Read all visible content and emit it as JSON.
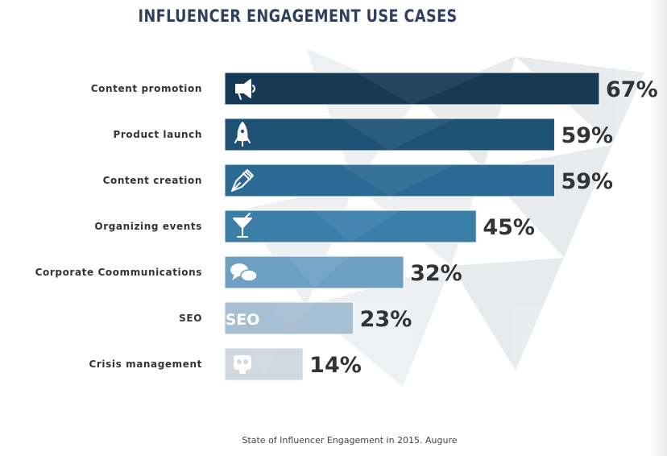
{
  "chart_data": {
    "type": "bar",
    "orientation": "horizontal",
    "title": "INFLUENCER ENGAGEMENT USE CASES",
    "categories": [
      "Content promotion",
      "Product launch",
      "Content creation",
      "Organizing events",
      "Corporate Coommunications",
      "SEO",
      "Crisis management"
    ],
    "values": [
      67,
      59,
      59,
      45,
      32,
      23,
      14
    ],
    "value_labels": [
      "67%",
      "59%",
      "59%",
      "45%",
      "32%",
      "23%",
      "14%"
    ],
    "icons": [
      "megaphone-icon",
      "rocket-icon",
      "pen-icon",
      "cocktail-icon",
      "speech-bubbles-icon",
      "seo-icon",
      "skull-icon"
    ],
    "icon_texts": [
      "",
      "",
      "",
      "",
      "",
      "SEO",
      ""
    ],
    "colors": [
      "#163a55",
      "#1d5274",
      "#2a6a93",
      "#3b7ea8",
      "#6ea0c3",
      "#a6bfd2",
      "#cfd9e2"
    ],
    "xlim": [
      0,
      67
    ],
    "grid": false,
    "legend": "none"
  },
  "source": "State of Influencer Engagement in 2015. Augure"
}
